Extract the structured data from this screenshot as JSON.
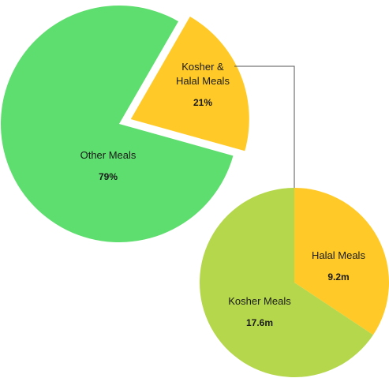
{
  "chart_data": [
    {
      "type": "pie",
      "title": "",
      "slices": [
        {
          "label": "Other Meals",
          "value": "79%",
          "share": 0.79,
          "color": "#5ede6e",
          "exploded": false
        },
        {
          "label_lines": [
            "Kosher &",
            "Halal Meals"
          ],
          "value": "21%",
          "share": 0.21,
          "color": "#ffca28",
          "exploded": true
        }
      ]
    },
    {
      "type": "pie",
      "title": "",
      "breakdown_of": "Kosher & Halal Meals",
      "slices": [
        {
          "label": "Halal Meals",
          "value": "9.2m",
          "amount": 9.2,
          "color": "#ffca28"
        },
        {
          "label": "Kosher Meals",
          "value": "17.6m",
          "amount": 17.6,
          "color": "#b5d74b"
        }
      ]
    }
  ],
  "connector_color": "#555555"
}
